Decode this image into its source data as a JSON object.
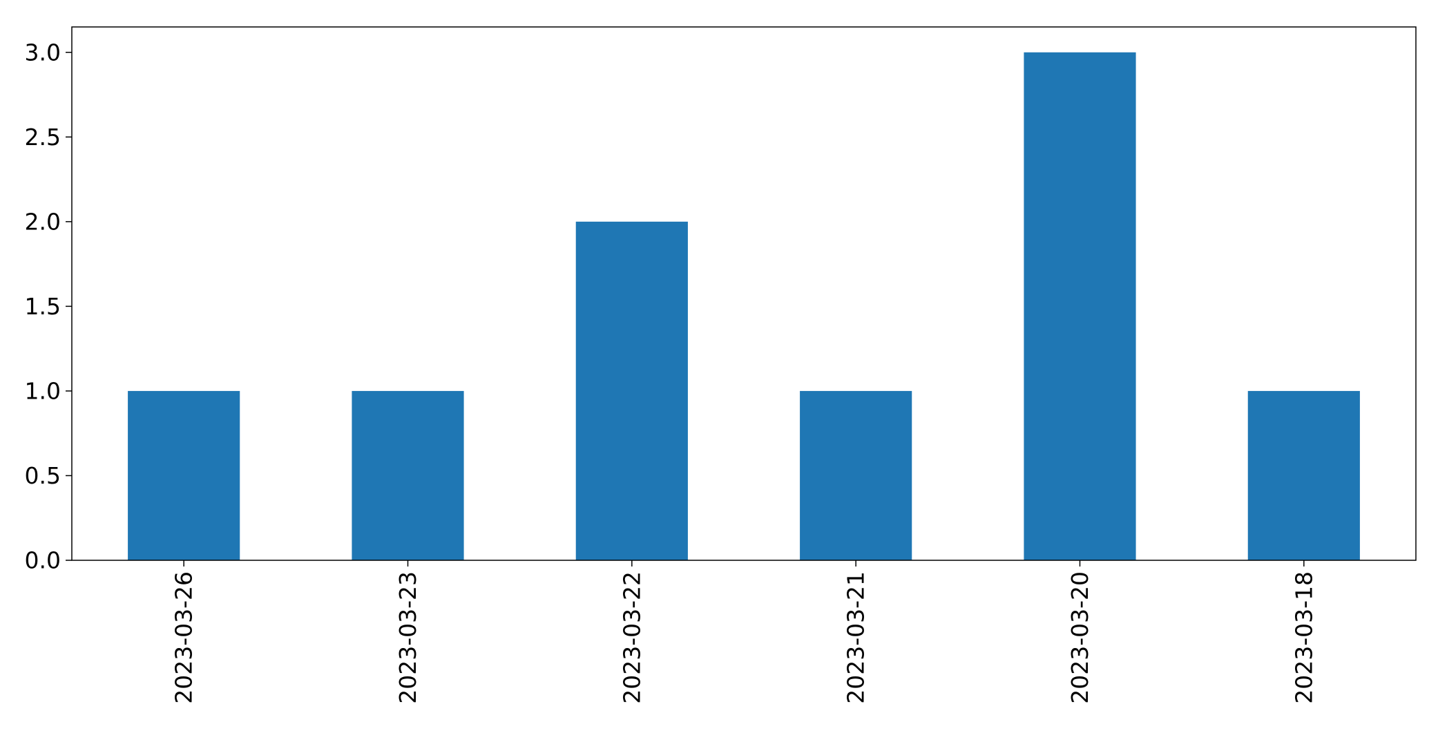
{
  "chart_data": {
    "type": "bar",
    "categories": [
      "2023-03-26",
      "2023-03-23",
      "2023-03-22",
      "2023-03-21",
      "2023-03-20",
      "2023-03-18"
    ],
    "values": [
      1,
      1,
      2,
      1,
      3,
      1
    ],
    "title": "",
    "xlabel": "",
    "ylabel": "",
    "ylim": [
      0,
      3.15
    ],
    "yticks": [
      "0.0",
      "0.5",
      "1.0",
      "1.5",
      "2.0",
      "2.5",
      "3.0"
    ],
    "grid": false,
    "legend": "none",
    "bar_color": "#1f77b4",
    "axis_color": "#000000"
  }
}
